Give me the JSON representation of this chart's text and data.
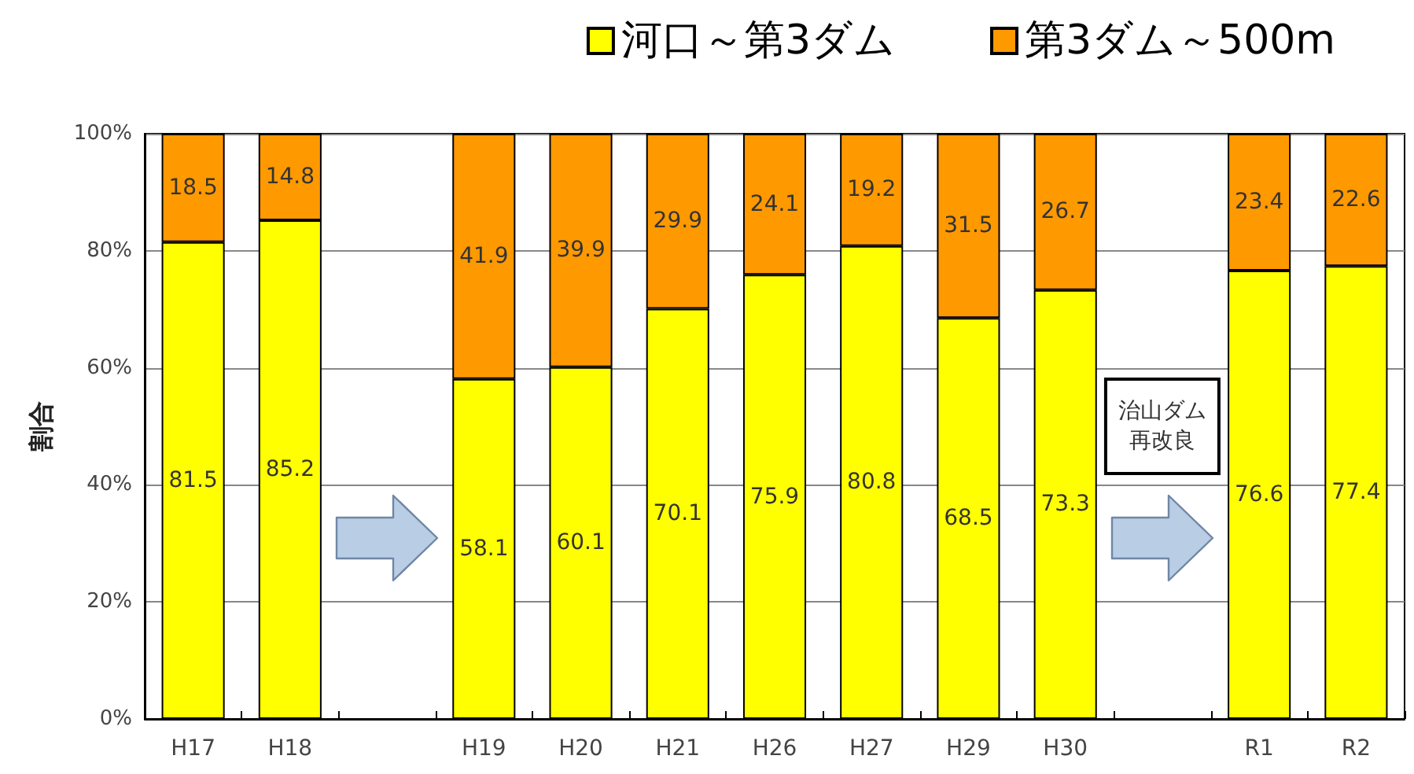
{
  "chart_data": {
    "type": "bar",
    "ylabel": "割合",
    "categories": [
      "H17",
      "H18",
      null,
      "H19",
      "H20",
      "H21",
      "H26",
      "H27",
      "H29",
      "H30",
      null,
      "R1",
      "R2"
    ],
    "series": [
      {
        "name": "河口～第3ダム",
        "color": "#ffff00",
        "values": [
          81.5,
          85.2,
          null,
          58.1,
          60.1,
          70.1,
          75.9,
          80.8,
          68.5,
          73.3,
          null,
          76.6,
          77.4
        ]
      },
      {
        "name": "第3ダム～500m",
        "color": "#ff9900",
        "values": [
          18.5,
          14.8,
          null,
          41.9,
          39.9,
          29.9,
          24.1,
          19.2,
          31.5,
          26.7,
          null,
          23.4,
          22.6
        ]
      }
    ],
    "stacked": true,
    "data_labels": true,
    "ylim": [
      0,
      100
    ],
    "yticks": [
      {
        "value": 0,
        "label": "0%"
      },
      {
        "value": 20,
        "label": "20%"
      },
      {
        "value": 40,
        "label": "40%"
      },
      {
        "value": 60,
        "label": "60%"
      },
      {
        "value": 80,
        "label": "80%"
      },
      {
        "value": 100,
        "label": "100%"
      }
    ],
    "grid": "y",
    "legend": "top right",
    "annotations": [
      "治山ダム再改良"
    ]
  }
}
